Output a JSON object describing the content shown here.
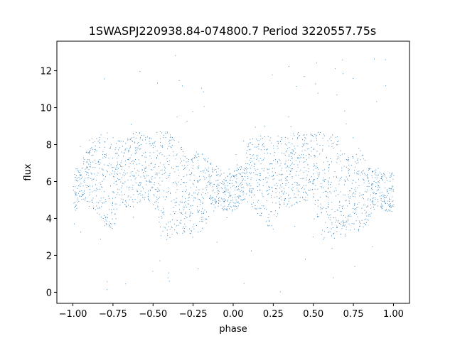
{
  "chart_data": {
    "type": "scatter",
    "title": "1SWASPJ220938.84-074800.7 Period 3220557.75s",
    "xlabel": "phase",
    "ylabel": "flux",
    "xlim": [
      -1.1,
      1.1
    ],
    "ylim": [
      -0.6,
      13.6
    ],
    "xticks": [
      -1.0,
      -0.75,
      -0.5,
      -0.25,
      0.0,
      0.25,
      0.5,
      0.75,
      1.0
    ],
    "xtick_labels": [
      "−1.00",
      "−0.75",
      "−0.50",
      "−0.25",
      "0.00",
      "0.25",
      "0.50",
      "0.75",
      "1.00"
    ],
    "yticks": [
      0,
      2,
      4,
      6,
      8,
      10,
      12
    ],
    "ytick_labels": [
      "0",
      "2",
      "4",
      "6",
      "8",
      "10",
      "12"
    ],
    "grid": false,
    "marker_color": "#1f77b4",
    "series": [
      {
        "envelope": [
          {
            "x": -1.0,
            "y": [
              4.2,
              6.6
            ]
          },
          {
            "x": -0.95,
            "y": [
              5.0,
              7.0
            ]
          },
          {
            "x": -0.9,
            "y": [
              4.8,
              8.4
            ]
          },
          {
            "x": -0.85,
            "y": [
              4.3,
              8.5
            ]
          },
          {
            "x": -0.8,
            "y": [
              3.5,
              8.7
            ]
          },
          {
            "x": -0.75,
            "y": [
              3.4,
              8.6
            ]
          },
          {
            "x": -0.7,
            "y": [
              4.8,
              8.4
            ]
          },
          {
            "x": -0.65,
            "y": [
              4.5,
              8.5
            ]
          },
          {
            "x": -0.6,
            "y": [
              4.8,
              8.8
            ]
          },
          {
            "x": -0.55,
            "y": [
              4.9,
              8.6
            ]
          },
          {
            "x": -0.5,
            "y": [
              5.0,
              8.6
            ]
          },
          {
            "x": -0.45,
            "y": [
              2.8,
              8.8
            ]
          },
          {
            "x": -0.4,
            "y": [
              2.9,
              8.7
            ]
          },
          {
            "x": -0.35,
            "y": [
              3.2,
              8.4
            ]
          },
          {
            "x": -0.3,
            "y": [
              3.0,
              7.4
            ]
          },
          {
            "x": -0.25,
            "y": [
              3.2,
              7.4
            ]
          },
          {
            "x": -0.2,
            "y": [
              3.3,
              7.8
            ]
          },
          {
            "x": -0.15,
            "y": [
              4.0,
              7.2
            ]
          },
          {
            "x": -0.1,
            "y": [
              4.6,
              6.8
            ]
          },
          {
            "x": -0.05,
            "y": [
              4.4,
              6.4
            ]
          },
          {
            "x": 0.0,
            "y": [
              4.2,
              6.6
            ]
          },
          {
            "x": 0.05,
            "y": [
              5.0,
              7.0
            ]
          },
          {
            "x": 0.1,
            "y": [
              4.8,
              8.4
            ]
          },
          {
            "x": 0.15,
            "y": [
              4.3,
              8.5
            ]
          },
          {
            "x": 0.2,
            "y": [
              3.5,
              8.7
            ]
          },
          {
            "x": 0.25,
            "y": [
              3.4,
              8.6
            ]
          },
          {
            "x": 0.3,
            "y": [
              4.8,
              8.4
            ]
          },
          {
            "x": 0.35,
            "y": [
              4.5,
              8.5
            ]
          },
          {
            "x": 0.4,
            "y": [
              4.8,
              8.8
            ]
          },
          {
            "x": 0.45,
            "y": [
              4.9,
              8.6
            ]
          },
          {
            "x": 0.5,
            "y": [
              5.0,
              8.6
            ]
          },
          {
            "x": 0.55,
            "y": [
              2.8,
              8.8
            ]
          },
          {
            "x": 0.6,
            "y": [
              2.9,
              8.7
            ]
          },
          {
            "x": 0.65,
            "y": [
              3.2,
              8.4
            ]
          },
          {
            "x": 0.7,
            "y": [
              3.0,
              7.4
            ]
          },
          {
            "x": 0.75,
            "y": [
              3.2,
              7.4
            ]
          },
          {
            "x": 0.8,
            "y": [
              3.3,
              7.8
            ]
          },
          {
            "x": 0.85,
            "y": [
              4.0,
              7.2
            ]
          },
          {
            "x": 0.9,
            "y": [
              4.6,
              6.8
            ]
          },
          {
            "x": 0.95,
            "y": [
              4.4,
              6.4
            ]
          },
          {
            "x": 1.0,
            "y": [
              4.2,
              6.6
            ]
          }
        ],
        "points_per_phase_bin": 60,
        "outlier_range": [
          0,
          13
        ]
      }
    ]
  }
}
